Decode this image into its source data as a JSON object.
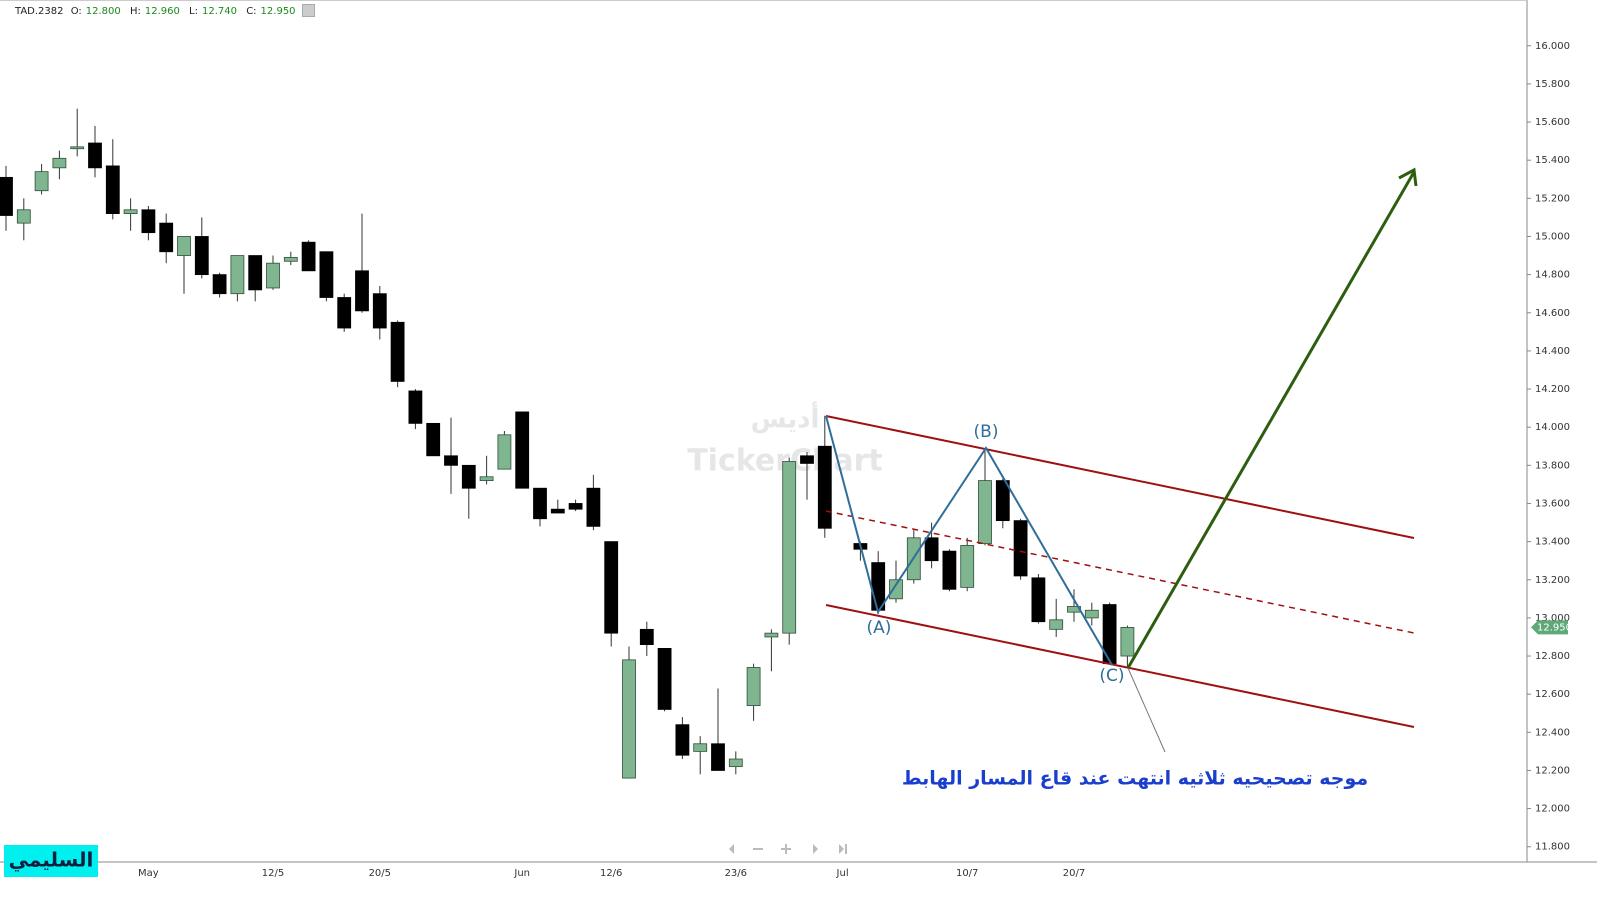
{
  "header": {
    "symbol": "TAD.2382",
    "o_label": "O:",
    "o": "12.800",
    "h_label": "H:",
    "h": "12.960",
    "l_label": "L:",
    "l": "12.740",
    "c_label": "C:",
    "c": "12.950"
  },
  "chart_data": {
    "type": "candlestick",
    "categories": [
      null,
      null,
      null,
      null,
      null,
      null,
      null,
      null,
      "May",
      null,
      null,
      null,
      null,
      null,
      null,
      "12/5",
      null,
      null,
      null,
      null,
      null,
      "20/5",
      null,
      null,
      null,
      null,
      null,
      null,
      null,
      "Jun",
      null,
      null,
      null,
      null,
      "12/6",
      null,
      null,
      null,
      null,
      null,
      null,
      "23/6",
      null,
      null,
      null,
      null,
      null,
      "Jul",
      null,
      null,
      null,
      null,
      null,
      null,
      "10/7",
      null,
      null,
      null,
      null,
      null,
      "20/7",
      null,
      null,
      null
    ],
    "open": [
      15.31,
      15.07,
      15.24,
      15.36,
      15.46,
      15.49,
      15.37,
      15.12,
      15.14,
      15.07,
      14.9,
      15.0,
      14.8,
      14.7,
      14.9,
      14.73,
      14.87,
      14.97,
      14.92,
      14.68,
      14.82,
      14.7,
      14.55,
      14.19,
      14.02,
      13.85,
      13.8,
      13.72,
      13.78,
      14.08,
      13.68,
      13.57,
      13.6,
      13.68,
      13.4,
      12.16,
      12.94,
      12.84,
      12.44,
      12.3,
      12.34,
      12.22,
      12.54,
      12.9,
      12.92,
      13.85,
      13.9,
      null,
      13.39,
      13.29,
      13.1,
      13.2,
      13.42,
      13.35,
      13.16,
      13.39,
      13.72,
      13.51,
      13.21,
      12.94,
      13.03,
      13.0,
      13.07,
      12.8
    ],
    "high": [
      15.37,
      15.2,
      15.38,
      15.45,
      15.67,
      15.58,
      15.51,
      15.2,
      15.16,
      15.12,
      15.0,
      15.1,
      14.81,
      14.9,
      14.9,
      14.9,
      14.92,
      14.98,
      14.92,
      14.7,
      15.12,
      14.74,
      14.56,
      14.2,
      14.02,
      14.05,
      13.8,
      13.85,
      13.98,
      14.08,
      13.68,
      13.62,
      13.62,
      13.75,
      13.4,
      12.85,
      12.98,
      12.84,
      12.48,
      12.38,
      12.63,
      12.3,
      12.76,
      12.94,
      13.84,
      13.87,
      14.06,
      null,
      13.4,
      13.35,
      13.3,
      13.46,
      13.5,
      13.36,
      13.42,
      13.88,
      13.73,
      13.52,
      13.23,
      13.1,
      13.15,
      13.08,
      13.08,
      12.96
    ],
    "low": [
      15.03,
      14.98,
      15.22,
      15.3,
      15.42,
      15.31,
      15.09,
      15.03,
      14.98,
      14.86,
      14.7,
      14.78,
      14.68,
      14.66,
      14.66,
      14.72,
      14.85,
      14.82,
      14.66,
      14.5,
      14.6,
      14.46,
      14.21,
      13.99,
      13.85,
      13.65,
      13.52,
      13.7,
      13.78,
      13.68,
      13.48,
      13.55,
      13.56,
      13.46,
      12.85,
      12.16,
      12.8,
      12.51,
      12.26,
      12.18,
      12.2,
      12.18,
      12.46,
      12.72,
      12.86,
      13.62,
      13.42,
      null,
      13.3,
      13.02,
      13.08,
      13.18,
      13.26,
      13.14,
      13.14,
      13.38,
      13.47,
      13.2,
      12.97,
      12.9,
      12.98,
      12.96,
      12.76,
      12.74
    ],
    "close": [
      15.11,
      15.14,
      15.34,
      15.41,
      15.47,
      15.36,
      15.12,
      15.14,
      15.02,
      14.92,
      15.0,
      14.8,
      14.7,
      14.9,
      14.72,
      14.86,
      14.89,
      14.82,
      14.68,
      14.52,
      14.61,
      14.52,
      14.24,
      14.02,
      13.85,
      13.8,
      13.68,
      13.74,
      13.96,
      13.68,
      13.52,
      13.55,
      13.57,
      13.48,
      12.92,
      12.78,
      12.86,
      12.52,
      12.28,
      12.34,
      12.2,
      12.26,
      12.74,
      12.92,
      13.82,
      13.81,
      13.47,
      null,
      13.36,
      13.04,
      13.2,
      13.42,
      13.3,
      13.15,
      13.38,
      13.72,
      13.51,
      13.22,
      12.98,
      12.99,
      13.06,
      13.04,
      12.76,
      12.95
    ],
    "up_color": "#7fb58f",
    "down_color": "#000000",
    "ylim": [
      11.72,
      16.24
    ],
    "yticks": [
      {
        "value": 11.8,
        "label": "11.800"
      },
      {
        "value": 12.0,
        "label": "12.000"
      },
      {
        "value": 12.2,
        "label": "12.200"
      },
      {
        "value": 12.4,
        "label": "12.400"
      },
      {
        "value": 12.6,
        "label": "12.600"
      },
      {
        "value": 12.8,
        "label": "12.800"
      },
      {
        "value": 13.0,
        "label": "13.000"
      },
      {
        "value": 13.2,
        "label": "13.200"
      },
      {
        "value": 13.4,
        "label": "13.400"
      },
      {
        "value": 13.6,
        "label": "13.600"
      },
      {
        "value": 13.8,
        "label": "13.800"
      },
      {
        "value": 14.0,
        "label": "14.000"
      },
      {
        "value": 14.2,
        "label": "14.200"
      },
      {
        "value": 14.4,
        "label": "14.400"
      },
      {
        "value": 14.6,
        "label": "14.600"
      },
      {
        "value": 14.8,
        "label": "14.800"
      },
      {
        "value": 15.0,
        "label": "15.000"
      },
      {
        "value": 15.2,
        "label": "15.200"
      },
      {
        "value": 15.4,
        "label": "15.400"
      },
      {
        "value": 15.6,
        "label": "15.600"
      },
      {
        "value": 15.8,
        "label": "15.800"
      },
      {
        "value": 16.0,
        "label": "16.000"
      }
    ],
    "last_price_label": "12.950",
    "annotations": {
      "a": "(A)",
      "b": "(B)",
      "c": "(C)",
      "note": "موجه تصحيحيه ثلاثيه انتهت عند قاع المسار الهابط"
    },
    "watermark": {
      "arabic": "أديس",
      "brand": "TickerChart"
    },
    "author": "السليمي"
  }
}
